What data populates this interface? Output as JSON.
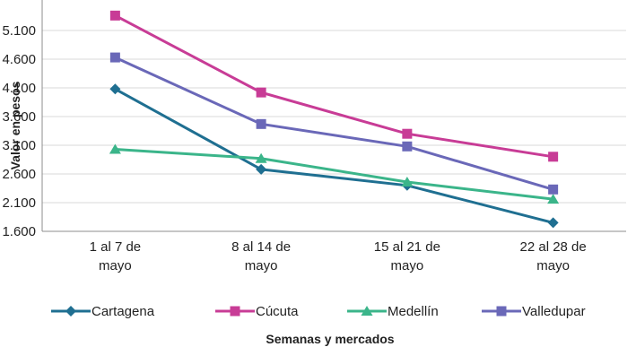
{
  "chart_data": {
    "type": "line",
    "title": "",
    "xlabel": "Semanas y mercados",
    "ylabel": "Valor en pesos",
    "categories": [
      [
        "1 al 7 de",
        "mayo"
      ],
      [
        "8 al 14 de",
        "mayo"
      ],
      [
        "15 al 21 de",
        "mayo"
      ],
      [
        "22 al 28 de",
        "mayo"
      ]
    ],
    "yticks": [
      "1.600",
      "2.100",
      "2.600",
      "3.100",
      "3.600",
      "4.100",
      "4.600",
      "5.100"
    ],
    "ylim": [
      1600,
      5100
    ],
    "grid": true,
    "legend_position": "bottom",
    "series": [
      {
        "name": "Cartagena",
        "color": "#1f6f91",
        "marker": "diamond",
        "values": [
          4080,
          2680,
          2400,
          1750
        ]
      },
      {
        "name": "Cúcuta",
        "color": "#c83c96",
        "marker": "square",
        "values": [
          5360,
          4020,
          3300,
          2900
        ]
      },
      {
        "name": "Medellín",
        "color": "#3bb58a",
        "marker": "triangle",
        "values": [
          3030,
          2870,
          2460,
          2160
        ]
      },
      {
        "name": "Valledupar",
        "color": "#6a68b8",
        "marker": "square",
        "values": [
          4630,
          3470,
          3080,
          2330
        ]
      }
    ]
  }
}
